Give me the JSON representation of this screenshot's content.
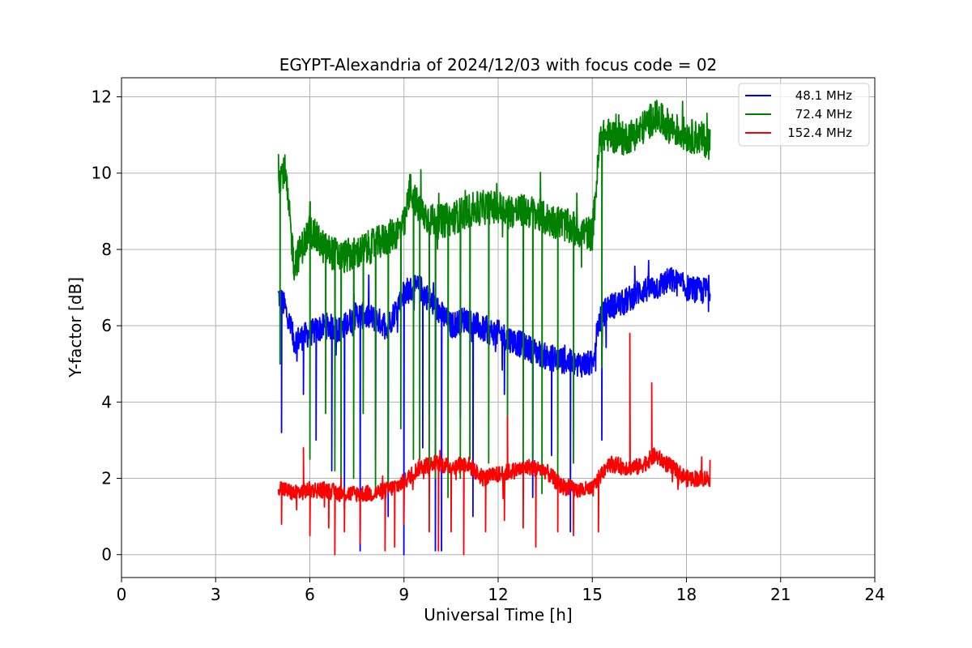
{
  "chart_data": {
    "type": "line",
    "title": "EGYPT-Alexandria of 2024/12/03 with focus code = 02",
    "xlabel": "Universal Time [h]",
    "ylabel": "Y-factor [dB]",
    "xlim": [
      0,
      24
    ],
    "ylim": [
      -0.6,
      12.5
    ],
    "xticks": [
      0,
      3,
      6,
      9,
      12,
      15,
      18,
      21,
      24
    ],
    "yticks": [
      0,
      2,
      4,
      6,
      8,
      10,
      12
    ],
    "grid": true,
    "legend_position": "top-right",
    "series": [
      {
        "name": "48.1 MHz",
        "color": "#0000ff",
        "x": [
          5.0,
          5.2,
          5.5,
          6.0,
          6.5,
          7.0,
          7.5,
          8.0,
          8.5,
          9.0,
          9.5,
          10.0,
          10.5,
          11.0,
          11.5,
          12.0,
          12.5,
          13.0,
          13.5,
          14.0,
          14.5,
          15.0,
          15.2,
          15.5,
          16.0,
          16.5,
          17.0,
          17.5,
          18.0,
          18.5,
          18.75
        ],
        "y": [
          6.8,
          6.5,
          5.6,
          5.8,
          6.0,
          5.9,
          6.3,
          6.2,
          6.0,
          6.9,
          7.0,
          6.5,
          6.0,
          6.2,
          5.9,
          5.8,
          5.6,
          5.4,
          5.2,
          5.1,
          5.0,
          5.0,
          6.1,
          6.5,
          6.6,
          6.9,
          7.0,
          7.2,
          7.0,
          6.9,
          7.0
        ],
        "dips": [
          [
            5.1,
            3.2
          ],
          [
            5.8,
            4.2
          ],
          [
            6.2,
            3.0
          ],
          [
            6.7,
            2.2
          ],
          [
            7.1,
            1.2
          ],
          [
            7.6,
            0.1
          ],
          [
            8.1,
            2.5
          ],
          [
            8.5,
            1.0
          ],
          [
            9.0,
            0.0
          ],
          [
            9.6,
            2.8
          ],
          [
            10.0,
            0.1
          ],
          [
            10.2,
            0.1
          ],
          [
            10.8,
            3.6
          ],
          [
            11.2,
            1.0
          ],
          [
            12.2,
            4.2
          ],
          [
            13.1,
            1.5
          ],
          [
            13.7,
            2.6
          ],
          [
            14.3,
            0.6
          ],
          [
            15.3,
            3.0
          ]
        ]
      },
      {
        "name": "72.4 MHz",
        "color": "#008000",
        "x": [
          5.0,
          5.2,
          5.5,
          6.0,
          6.5,
          7.0,
          7.5,
          8.0,
          8.5,
          9.0,
          9.2,
          9.5,
          10.0,
          10.5,
          11.0,
          11.5,
          12.0,
          12.5,
          13.0,
          13.5,
          14.0,
          14.5,
          15.0,
          15.25,
          15.5,
          16.0,
          16.5,
          17.0,
          17.5,
          18.0,
          18.5,
          18.75
        ],
        "y": [
          9.9,
          10.1,
          7.6,
          8.5,
          8.0,
          7.8,
          7.9,
          8.1,
          8.3,
          8.6,
          9.6,
          9.0,
          8.7,
          8.8,
          9.0,
          9.1,
          9.1,
          9.0,
          9.0,
          8.8,
          8.7,
          8.5,
          8.4,
          10.9,
          11.0,
          10.9,
          11.1,
          11.5,
          11.2,
          11.0,
          10.9,
          10.8
        ],
        "dips": [
          [
            5.05,
            5.0
          ],
          [
            6.0,
            2.5
          ],
          [
            6.5,
            3.7
          ],
          [
            6.8,
            2.2
          ],
          [
            7.0,
            1.5
          ],
          [
            7.4,
            2.0
          ],
          [
            7.7,
            3.7
          ],
          [
            8.1,
            1.7
          ],
          [
            8.5,
            1.8
          ],
          [
            8.9,
            3.3
          ],
          [
            9.3,
            2.5
          ],
          [
            9.5,
            2.5
          ],
          [
            9.8,
            1.5
          ],
          [
            10.0,
            2.0
          ],
          [
            10.4,
            1.5
          ],
          [
            10.8,
            2.0
          ],
          [
            11.1,
            2.5
          ],
          [
            11.7,
            2.4
          ],
          [
            12.3,
            2.2
          ],
          [
            12.8,
            1.7
          ],
          [
            13.1,
            2.5
          ],
          [
            13.4,
            1.6
          ],
          [
            13.9,
            1.8
          ],
          [
            14.4,
            2.4
          ],
          [
            15.3,
            4.9
          ]
        ]
      },
      {
        "name": "152.4 MHz",
        "color": "#ff0000",
        "x": [
          5.0,
          5.2,
          5.5,
          6.0,
          6.5,
          7.0,
          7.5,
          8.0,
          8.5,
          9.0,
          9.5,
          10.0,
          10.5,
          11.0,
          11.5,
          12.0,
          12.5,
          13.0,
          13.5,
          14.0,
          14.5,
          15.0,
          15.5,
          16.0,
          16.5,
          17.0,
          17.5,
          18.0,
          18.5,
          18.75
        ],
        "y": [
          1.8,
          1.7,
          1.6,
          1.7,
          1.7,
          1.6,
          1.6,
          1.6,
          1.7,
          1.9,
          2.3,
          2.4,
          2.3,
          2.4,
          2.0,
          2.1,
          2.2,
          2.3,
          2.2,
          1.8,
          1.7,
          1.7,
          2.4,
          2.3,
          2.3,
          2.6,
          2.3,
          2.0,
          2.0,
          2.0
        ],
        "spikes": [
          [
            5.1,
            0.8
          ],
          [
            5.8,
            2.8
          ],
          [
            6.0,
            0.5
          ],
          [
            6.6,
            0.7
          ],
          [
            6.8,
            0.0
          ],
          [
            7.1,
            0.6
          ],
          [
            7.6,
            0.3
          ],
          [
            8.4,
            0.1
          ],
          [
            8.7,
            0.2
          ],
          [
            9.0,
            0.8
          ],
          [
            9.8,
            0.6
          ],
          [
            10.1,
            0.1
          ],
          [
            10.5,
            0.6
          ],
          [
            10.9,
            0.0
          ],
          [
            11.6,
            0.6
          ],
          [
            12.2,
            0.9
          ],
          [
            12.3,
            3.6
          ],
          [
            12.8,
            0.7
          ],
          [
            13.2,
            0.2
          ],
          [
            13.9,
            0.6
          ],
          [
            14.4,
            0.5
          ],
          [
            15.2,
            0.6
          ],
          [
            16.2,
            5.8
          ],
          [
            16.9,
            4.5
          ]
        ]
      }
    ]
  }
}
